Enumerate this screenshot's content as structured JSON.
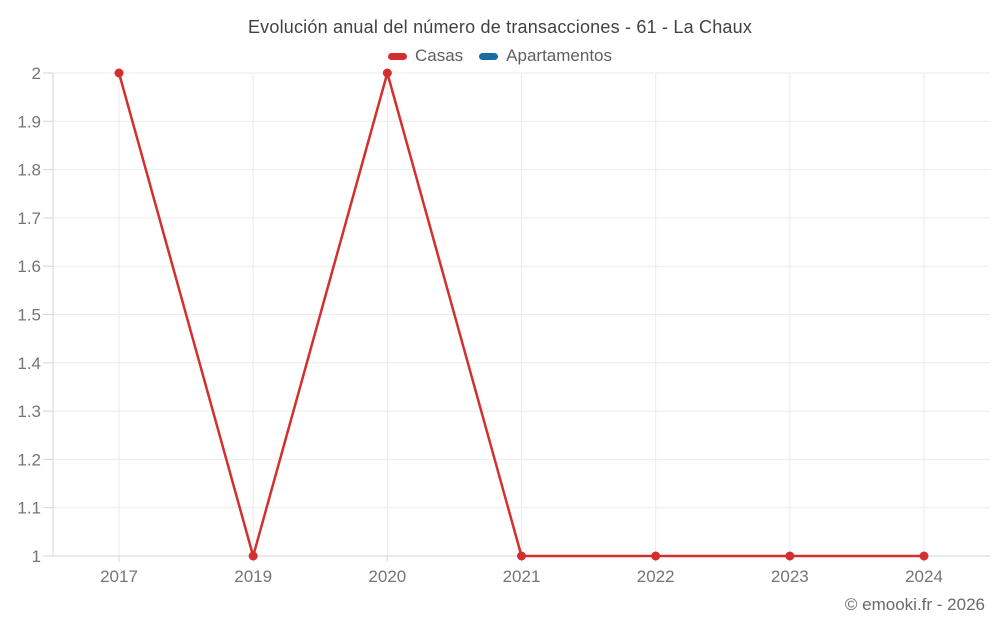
{
  "footer": {
    "watermark": "© emooki.fr - 2026"
  },
  "colors": {
    "casas": "#d32f2f",
    "apartamentos": "#1a6d9e",
    "gridline": "#ebebeb",
    "axis": "#d5d5d5",
    "title_text": "#424242",
    "tick_text": "#757575"
  },
  "chart_data": {
    "type": "line",
    "title": "Evolución anual del número de transacciones - 61 - La Chaux",
    "xlabel": "",
    "ylabel": "",
    "categories": [
      "2017",
      "2019",
      "2020",
      "2021",
      "2022",
      "2023",
      "2024"
    ],
    "series": [
      {
        "name": "Casas",
        "color": "#d32f2f",
        "values": [
          2,
          1,
          2,
          1,
          1,
          1,
          1
        ]
      },
      {
        "name": "Apartamentos",
        "color": "#1a6d9e",
        "values": [
          null,
          null,
          null,
          null,
          null,
          null,
          null
        ]
      }
    ],
    "ylim": [
      1,
      2
    ],
    "y_ticks": [
      "1",
      "1.1",
      "1.2",
      "1.3",
      "1.4",
      "1.5",
      "1.6",
      "1.7",
      "1.8",
      "1.9",
      "2"
    ],
    "grid": true,
    "legend_position": "top"
  }
}
